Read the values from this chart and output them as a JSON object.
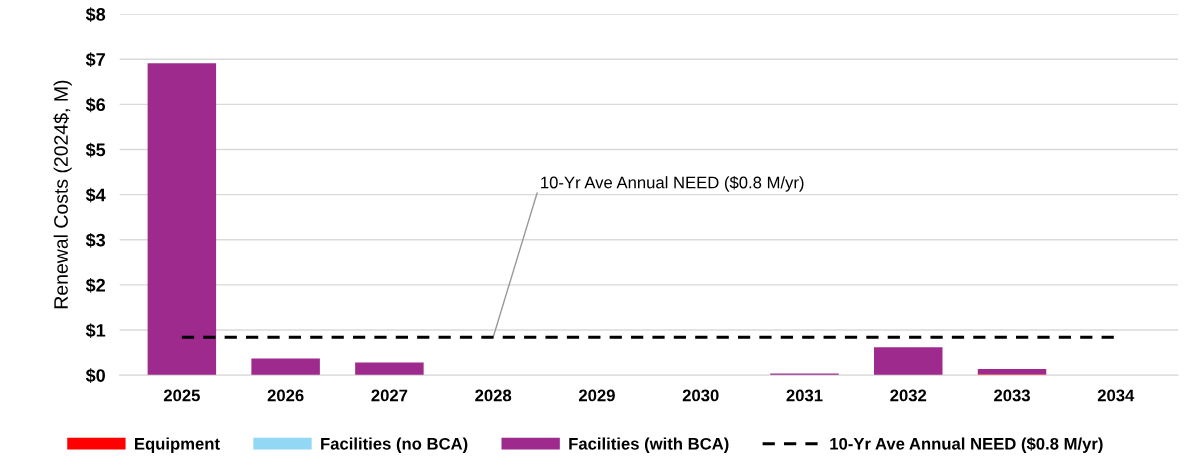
{
  "chart_data": {
    "type": "bar",
    "stacked": true,
    "ylabel": "Renewal Costs (2024$, M)",
    "categories": [
      "2025",
      "2026",
      "2027",
      "2028",
      "2029",
      "2030",
      "2031",
      "2032",
      "2033",
      "2034"
    ],
    "series": [
      {
        "name": "Equipment",
        "color": "#ff0000",
        "values": [
          0,
          0,
          0,
          0,
          0,
          0,
          0,
          0,
          0.02,
          0
        ]
      },
      {
        "name": "Facilities (no BCA)",
        "color": "#92d8f4",
        "values": [
          0,
          0,
          0,
          0,
          0,
          0,
          0,
          0,
          0,
          0
        ]
      },
      {
        "name": "Facilities (with BCA)",
        "color": "#9e2a8e",
        "values": [
          6.91,
          0.37,
          0.28,
          0,
          0,
          0,
          0.04,
          0.62,
          0.12,
          0
        ]
      },
      {
        "name": "10-Yr Ave Annual NEED ($0.8 M/yr)",
        "type": "line",
        "color": "#000000",
        "line_style": "dashed",
        "marker": "none",
        "values": [
          0.84,
          0.84,
          0.84,
          0.84,
          0.84,
          0.84,
          0.84,
          0.84,
          0.84,
          0.84
        ]
      }
    ],
    "annotations": [
      {
        "text": "10-Yr Ave Annual NEED ($0.8 M/yr)",
        "x": "2028",
        "y": 0.84
      }
    ],
    "ylim": [
      0,
      8
    ],
    "yticks": [
      {
        "value": 0,
        "label": "$0"
      },
      {
        "value": 1,
        "label": "$1"
      },
      {
        "value": 2,
        "label": "$2"
      },
      {
        "value": 3,
        "label": "$3"
      },
      {
        "value": 4,
        "label": "$4"
      },
      {
        "value": 5,
        "label": "$5"
      },
      {
        "value": 6,
        "label": "$6"
      },
      {
        "value": 7,
        "label": "$7"
      },
      {
        "value": 8,
        "label": "$8"
      }
    ],
    "grid": "y",
    "legend": "bottom"
  }
}
